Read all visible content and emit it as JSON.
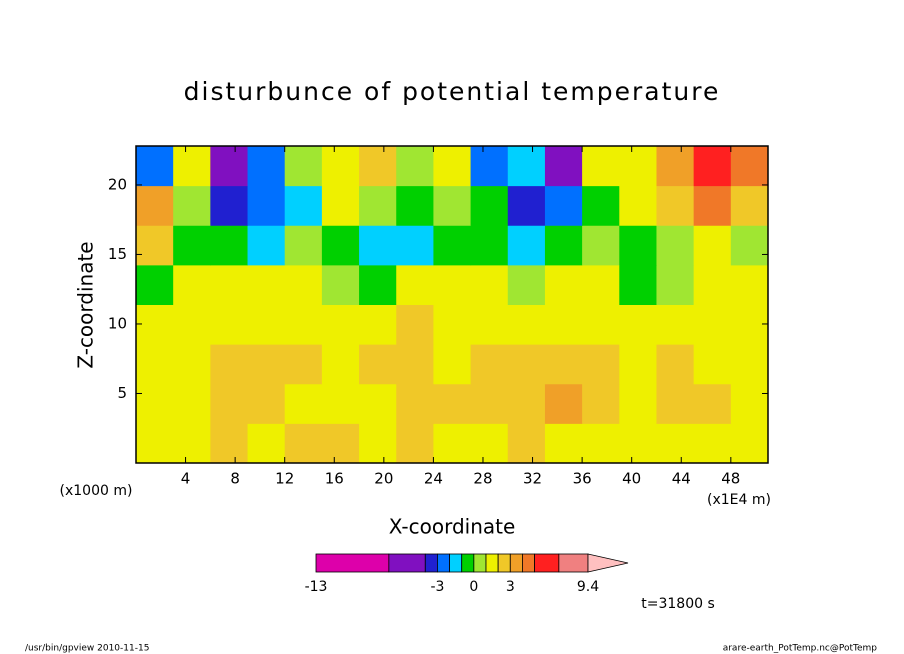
{
  "chart_data": {
    "type": "contour",
    "title": "disturbunce of potential temperature",
    "x_label": "X-coordinate",
    "y_label": "Z-coordinate",
    "x_unit": "(x1E4 m)",
    "y_unit": "(x1000 m)",
    "time_label": "t=31800 s",
    "footer_left": "/usr/bin/gpview  2010-11-15",
    "footer_right": "arare-earth_PotTemp.nc@PotTemp",
    "xlim": [
      0,
      51
    ],
    "ylim": [
      0,
      22.8
    ],
    "xticks": [
      4,
      8,
      12,
      16,
      20,
      24,
      28,
      32,
      36,
      40,
      44,
      48
    ],
    "yticks": [
      5,
      10,
      15,
      20
    ],
    "x_edges": [
      0,
      3,
      6,
      9,
      12,
      15,
      18,
      21,
      24,
      27,
      30,
      33,
      36,
      39,
      42,
      45,
      48,
      51
    ],
    "z_edges": [
      0,
      2.85,
      5.7,
      8.55,
      11.4,
      14.25,
      17.1,
      19.95,
      22.8
    ],
    "values": [
      [
        1.5,
        1.5,
        2.5,
        1.5,
        2.5,
        2.5,
        1.5,
        2.5,
        1.5,
        1.5,
        2.5,
        1.5,
        1.5,
        1.5,
        1.5,
        1.5,
        1.5
      ],
      [
        1.5,
        1.5,
        2.5,
        2.5,
        1.5,
        1.5,
        1.5,
        2.5,
        2.5,
        2.5,
        2.5,
        3.5,
        2.5,
        1.5,
        2.5,
        2.5,
        1.5
      ],
      [
        1.5,
        1.5,
        2.5,
        2.5,
        2.5,
        1.5,
        2.5,
        2.5,
        1.5,
        2.5,
        2.5,
        2.5,
        2.5,
        1.5,
        2.5,
        1.5,
        1.5
      ],
      [
        1.5,
        1.5,
        1.5,
        1.5,
        1.5,
        1.5,
        1.5,
        2.5,
        1.5,
        1.5,
        1.5,
        1.5,
        1.5,
        1.5,
        1.5,
        1.5,
        1.5
      ],
      [
        -0.5,
        1.5,
        1.5,
        1.5,
        1.5,
        0.5,
        -0.5,
        1.5,
        1.5,
        1.5,
        0.5,
        1.5,
        1.5,
        -0.5,
        0.5,
        1.5,
        1.5
      ],
      [
        2.5,
        -0.5,
        -0.5,
        -1.5,
        0.5,
        -0.5,
        -1.5,
        -1.5,
        -0.5,
        -0.5,
        -1.5,
        -0.5,
        0.5,
        -0.5,
        0.5,
        1.5,
        0.5
      ],
      [
        3.5,
        0.5,
        -3.5,
        -2.5,
        -1.5,
        1.5,
        0.5,
        -0.5,
        0.5,
        -0.5,
        -3.5,
        -2.5,
        -0.5,
        1.5,
        2.5,
        4.5,
        2.5
      ],
      [
        -2.5,
        1.5,
        -5,
        -2.5,
        0.5,
        1.5,
        2.5,
        0.5,
        1.5,
        -2.5,
        -1.5,
        -5,
        1.5,
        1.5,
        3.5,
        6,
        4.5
      ]
    ],
    "levels": [
      -13,
      -7,
      -4,
      -3,
      -2,
      -1,
      0,
      1,
      2,
      3,
      4,
      5,
      7,
      9.4
    ],
    "colors": [
      "#dd00aa",
      "#8010c0",
      "#2020d0",
      "#0070ff",
      "#00d0ff",
      "#00d000",
      "#a0e632",
      "#eef000",
      "#f0c828",
      "#f0a028",
      "#f07828",
      "#ff2020",
      "#f08080",
      "#ffc0c0"
    ],
    "colorbar_ticks": [
      -13,
      -3,
      0,
      3,
      9.4
    ]
  }
}
